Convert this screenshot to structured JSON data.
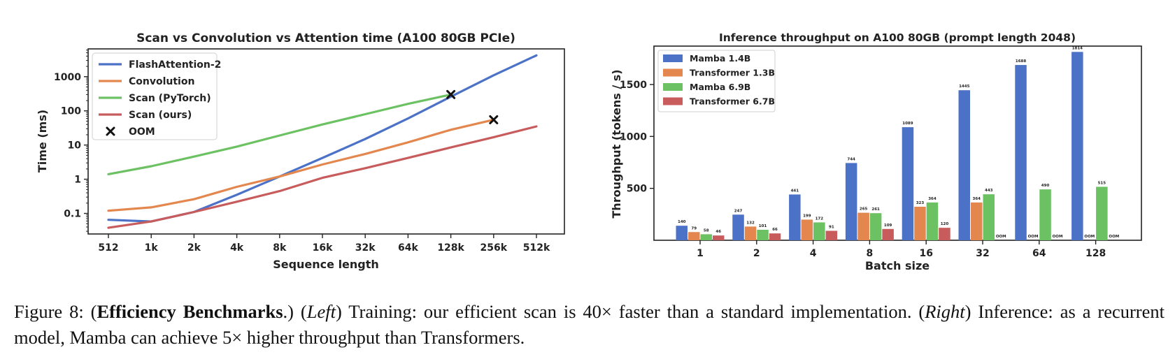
{
  "chart_data": [
    {
      "type": "line",
      "title": "Scan vs Convolution vs Attention time (A100 80GB PCIe)",
      "xlabel": "Sequence length",
      "ylabel": "Time (ms)",
      "yscale": "log",
      "ylim": [
        0.025,
        6500
      ],
      "categories": [
        "512",
        "1k",
        "2k",
        "4k",
        "8k",
        "16k",
        "32k",
        "64k",
        "128k",
        "256k",
        "512k"
      ],
      "yticks": [
        0.1,
        1,
        10,
        100,
        1000
      ],
      "ytick_labels": [
        "0.1",
        "1",
        "10",
        "100",
        "1000"
      ],
      "grid": false,
      "legend_position": "top-left",
      "series": [
        {
          "name": "FlashAttention-2",
          "color": "#4c72c8",
          "values": [
            0.065,
            0.058,
            0.11,
            0.35,
            1.2,
            4.2,
            15,
            60,
            260,
            1100,
            4200
          ]
        },
        {
          "name": "Convolution",
          "color": "#e3874e",
          "values": [
            0.12,
            0.15,
            0.26,
            0.6,
            1.2,
            2.7,
            5.5,
            12,
            28,
            55,
            null
          ]
        },
        {
          "name": "Scan (PyTorch)",
          "color": "#6cc163",
          "values": [
            1.4,
            2.4,
            4.6,
            9,
            19,
            40,
            80,
            160,
            300,
            null,
            null
          ]
        },
        {
          "name": "Scan (ours)",
          "color": "#c85c5c",
          "values": [
            0.038,
            0.058,
            0.11,
            0.22,
            0.45,
            1.1,
            2.1,
            4.2,
            8.5,
            17,
            35
          ]
        }
      ],
      "oom_label": "OOM",
      "oom_points": [
        {
          "x": "128k",
          "y": 300
        },
        {
          "x": "256k",
          "y": 55
        }
      ]
    },
    {
      "type": "bar",
      "title": "Inference throughput on A100 80GB (prompt length 2048)",
      "xlabel": "Batch size",
      "ylabel": "Throughput (tokens / s)",
      "ylim": [
        0,
        1870
      ],
      "yticks": [
        500,
        1000,
        1500
      ],
      "categories": [
        "1",
        "2",
        "4",
        "8",
        "16",
        "32",
        "64",
        "128"
      ],
      "grid": false,
      "legend_position": "top-left",
      "series": [
        {
          "name": "Mamba 1.4B",
          "color": "#4c72c8",
          "values": [
            140,
            247,
            441,
            744,
            1089,
            1445,
            1688,
            1814
          ]
        },
        {
          "name": "Transformer 1.3B",
          "color": "#e3874e",
          "values": [
            79,
            132,
            199,
            265,
            323,
            364,
            null,
            null
          ]
        },
        {
          "name": "Mamba 6.9B",
          "color": "#6cc163",
          "values": [
            58,
            101,
            172,
            261,
            364,
            443,
            490,
            515
          ]
        },
        {
          "name": "Transformer 6.7B",
          "color": "#c85c5c",
          "values": [
            46,
            66,
            91,
            109,
            120,
            null,
            null,
            null
          ]
        }
      ],
      "missing_label": "OOM"
    }
  ],
  "caption": {
    "figure_label": "Figure 8: (",
    "bold_title": "Efficiency Benchmarks",
    "after_title": ".)  (",
    "left_label": "Left",
    "left_text": ") Training:  our efficient scan is 40× faster than a standard implementation.  (",
    "right_label": "Right",
    "right_text": ") Inference: as a recurrent model, Mamba can achieve 5× higher throughput than Transformers."
  }
}
